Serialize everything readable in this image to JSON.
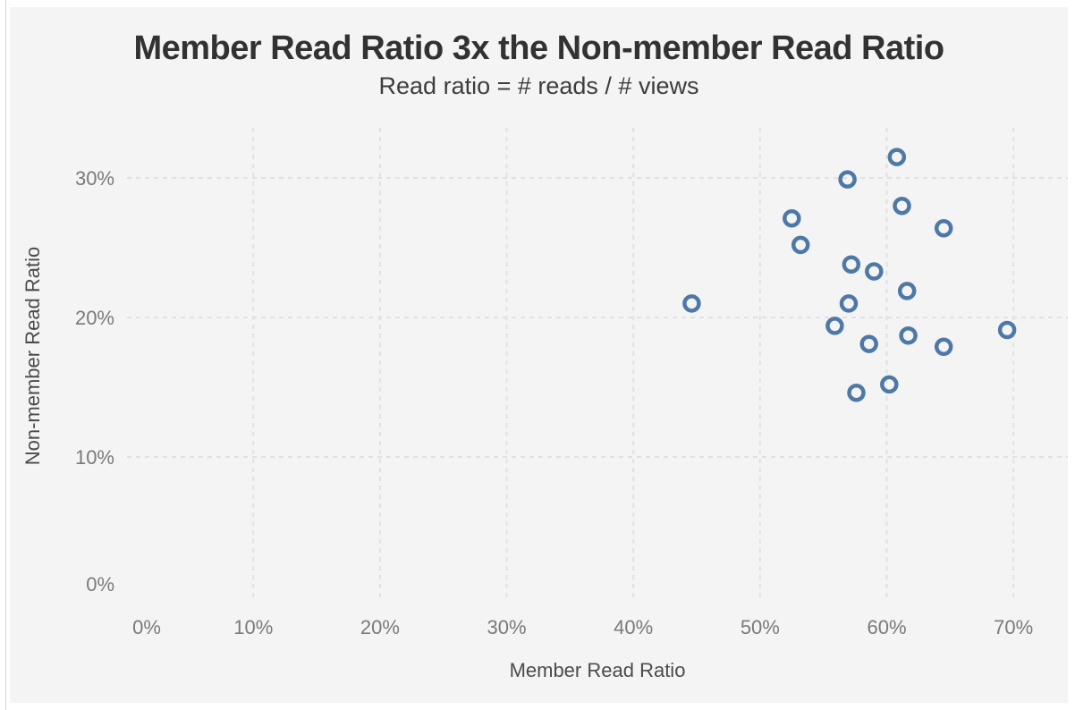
{
  "page": {
    "background": "#ffffff",
    "panel_background": "#f4f4f4"
  },
  "colors": {
    "marker": "#4e79a7",
    "gridline": "#e1e1e1",
    "title_text": "#323232",
    "subtitle_text": "#3d3d3d",
    "axis_title_text": "#4b4b4b",
    "tick_text": "#7a7a7a"
  },
  "chart_data": {
    "type": "scatter",
    "title": "Member Read Ratio 3x the Non-member Read Ratio",
    "subtitle": "Read ratio = # reads / # views",
    "xlabel": "Member Read Ratio",
    "ylabel": "Non-member Read Ratio",
    "x_ticks": [
      "0%",
      "10%",
      "20%",
      "30%",
      "40%",
      "50%",
      "60%",
      "70%"
    ],
    "y_ticks": [
      "0%",
      "10%",
      "20%",
      "30%"
    ],
    "xlim": [
      0,
      74
    ],
    "ylim": [
      0,
      33.6
    ],
    "grid": "dashed light-gray gridlines at 10% intervals, none at 0%",
    "legend": "none",
    "marker": {
      "style": "open-circle",
      "color": "#4e79a7"
    },
    "points": [
      {
        "x": 44.6,
        "y": 21.0
      },
      {
        "x": 52.5,
        "y": 27.1
      },
      {
        "x": 53.2,
        "y": 25.2
      },
      {
        "x": 55.9,
        "y": 19.4
      },
      {
        "x": 56.9,
        "y": 29.9
      },
      {
        "x": 57.0,
        "y": 21.0
      },
      {
        "x": 57.2,
        "y": 23.8
      },
      {
        "x": 57.6,
        "y": 14.6
      },
      {
        "x": 58.6,
        "y": 18.1
      },
      {
        "x": 59.0,
        "y": 23.3
      },
      {
        "x": 60.2,
        "y": 15.2
      },
      {
        "x": 60.8,
        "y": 31.5
      },
      {
        "x": 61.2,
        "y": 28.0
      },
      {
        "x": 61.6,
        "y": 21.9
      },
      {
        "x": 61.7,
        "y": 18.7
      },
      {
        "x": 64.5,
        "y": 26.4
      },
      {
        "x": 64.5,
        "y": 17.9
      },
      {
        "x": 69.5,
        "y": 19.1
      }
    ]
  }
}
